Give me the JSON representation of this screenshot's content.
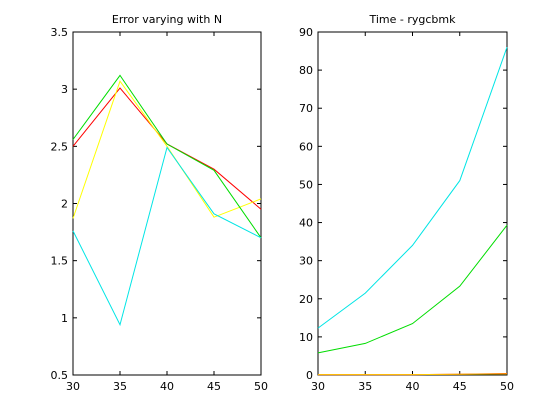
{
  "chart_data": [
    {
      "type": "line",
      "title": "Error varying with N",
      "xlabel": "",
      "ylabel": "",
      "x": [
        30,
        35,
        40,
        45,
        50
      ],
      "xlim": [
        30,
        50
      ],
      "ylim": [
        0.5,
        3.5
      ],
      "xticks": [
        "30",
        "35",
        "40",
        "45",
        "50"
      ],
      "yticks": [
        "0.5",
        "1",
        "1.5",
        "2",
        "2.5",
        "3",
        "3.5"
      ],
      "grid": false,
      "series": [
        {
          "name": "r",
          "color": "#ff0000",
          "values": [
            2.5,
            3.01,
            2.52,
            2.3,
            1.95
          ]
        },
        {
          "name": "y",
          "color": "#ffff00",
          "values": [
            1.87,
            3.07,
            2.5,
            1.88,
            2.04
          ]
        },
        {
          "name": "g",
          "color": "#00dd00",
          "values": [
            2.56,
            3.12,
            2.52,
            2.29,
            1.7
          ]
        },
        {
          "name": "c",
          "color": "#00e5e5",
          "values": [
            1.76,
            0.94,
            2.49,
            1.91,
            1.7
          ]
        }
      ]
    },
    {
      "type": "line",
      "title": "Time - rygcbmk",
      "xlabel": "",
      "ylabel": "",
      "x": [
        30,
        35,
        40,
        45,
        50
      ],
      "xlim": [
        30,
        50
      ],
      "ylim": [
        0,
        90
      ],
      "xticks": [
        "30",
        "35",
        "40",
        "45",
        "50"
      ],
      "yticks": [
        "0",
        "10",
        "20",
        "30",
        "40",
        "50",
        "60",
        "70",
        "80",
        "90"
      ],
      "grid": false,
      "series": [
        {
          "name": "r",
          "color": "#ff0000",
          "values": [
            0.1,
            0.1,
            0.1,
            0.2,
            0.4
          ]
        },
        {
          "name": "y",
          "color": "#ffcc00",
          "values": [
            0.1,
            0.1,
            0.1,
            0.2,
            0.3
          ]
        },
        {
          "name": "g",
          "color": "#00dd00",
          "values": [
            5.8,
            8.3,
            13.5,
            23.3,
            39.3
          ]
        },
        {
          "name": "c",
          "color": "#00e5e5",
          "values": [
            12.3,
            21.5,
            34.0,
            51.0,
            86.0
          ]
        }
      ]
    }
  ]
}
